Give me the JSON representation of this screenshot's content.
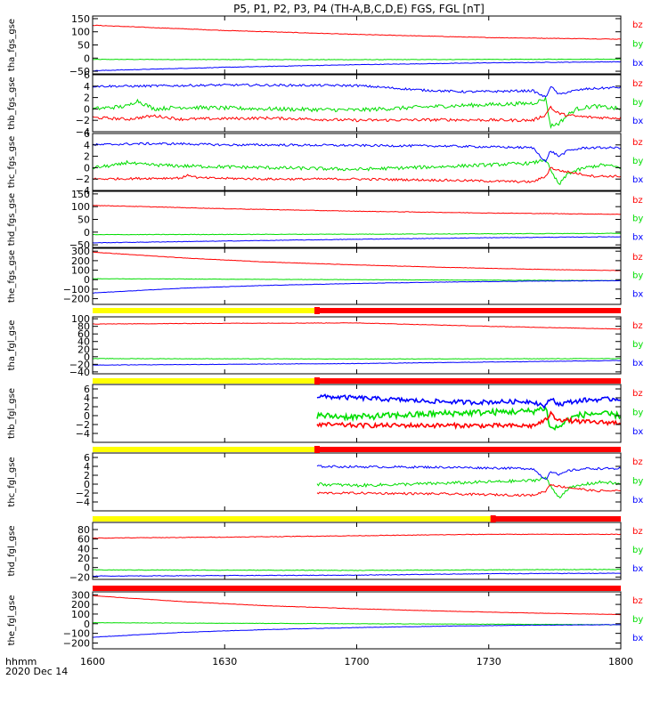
{
  "title": "P5, P1, P2, P3, P4 (TH-A,B,C,D,E) FGS, FGL [nT]",
  "time_axis": {
    "unit_label": "hhmm",
    "date_label": "2020 Dec 14",
    "range_minutes": [
      0,
      120
    ],
    "ticks": [
      {
        "t": 0,
        "label": "1600"
      },
      {
        "t": 30,
        "label": "1630"
      },
      {
        "t": 60,
        "label": "1700"
      },
      {
        "t": 90,
        "label": "1730"
      },
      {
        "t": 120,
        "label": "1800"
      }
    ]
  },
  "colors": {
    "bx": "#0000ff",
    "by": "#00dd00",
    "bz": "#ff0000",
    "mode_slow": "#ffff00",
    "mode_fast": "#ff0000"
  },
  "legend_labels": [
    "bz",
    "by",
    "bx"
  ],
  "chart_data": [
    {
      "type": "line",
      "name": "tha_fgs_gse",
      "ylabel": "tha_fgs_gse",
      "ylim": [
        -60,
        160
      ],
      "yticks": [
        {
          "v": 150,
          "label": "150"
        },
        {
          "v": 100,
          "label": "100"
        },
        {
          "v": 50,
          "label": "50"
        },
        {
          "v": 0,
          "label": "0"
        },
        {
          "v": -50,
          "label": "−50"
        }
      ],
      "series": [
        {
          "name": "bz",
          "x": [
            0,
            30,
            60,
            90,
            120
          ],
          "y": [
            125,
            105,
            90,
            78,
            72
          ],
          "noise": 1
        },
        {
          "name": "by",
          "x": [
            0,
            60,
            120
          ],
          "y": [
            -5,
            -6,
            -4
          ],
          "noise": 1
        },
        {
          "name": "bx",
          "x": [
            0,
            30,
            60,
            90,
            120
          ],
          "y": [
            -48,
            -35,
            -25,
            -18,
            -14
          ],
          "noise": 1
        }
      ]
    },
    {
      "type": "line",
      "name": "thb_fgs_gse",
      "ylabel": "thb_fgs_gse",
      "ylim": [
        -4,
        6
      ],
      "yticks": [
        {
          "v": 6,
          "label": "6"
        },
        {
          "v": 4,
          "label": "4"
        },
        {
          "v": 2,
          "label": "2"
        },
        {
          "v": 0,
          "label": "0"
        },
        {
          "v": -2,
          "label": "−2"
        },
        {
          "v": -4,
          "label": "−4"
        }
      ],
      "series": [
        {
          "name": "bz",
          "x": [
            0,
            8,
            14,
            20,
            40,
            60,
            80,
            100,
            103,
            104,
            105,
            107,
            110,
            114,
            120
          ],
          "y": [
            -1.5,
            -1.8,
            -1.2,
            -1.8,
            -1.6,
            -2.0,
            -1.9,
            -2.0,
            -1.0,
            0.5,
            -0.5,
            -1.0,
            -1.3,
            -1.5,
            -1.6
          ],
          "noise": 0.25
        },
        {
          "name": "by",
          "x": [
            0,
            8,
            10,
            14,
            20,
            40,
            60,
            80,
            100,
            103,
            104,
            106,
            108,
            110,
            114,
            120
          ],
          "y": [
            0.0,
            0.5,
            1.5,
            0.0,
            0.3,
            0.0,
            -0.2,
            0.5,
            1.0,
            1.8,
            -3.0,
            -2.5,
            -1.0,
            0.0,
            0.5,
            0.0
          ],
          "noise": 0.35
        },
        {
          "name": "bx",
          "x": [
            0,
            10,
            30,
            60,
            75,
            85,
            100,
            103,
            104,
            106,
            108,
            112,
            120
          ],
          "y": [
            4.0,
            4.0,
            4.2,
            4.1,
            3.3,
            3.0,
            3.2,
            2.0,
            4.0,
            2.5,
            3.0,
            3.5,
            3.8
          ],
          "noise": 0.2
        }
      ]
    },
    {
      "type": "line",
      "name": "thc_fgs_gse",
      "ylabel": "thc_fgs_gse",
      "ylim": [
        -4,
        6
      ],
      "yticks": [
        {
          "v": 6,
          "label": "6"
        },
        {
          "v": 4,
          "label": "4"
        },
        {
          "v": 2,
          "label": "2"
        },
        {
          "v": 0,
          "label": "0"
        },
        {
          "v": -2,
          "label": "−2"
        },
        {
          "v": -4,
          "label": "−4"
        }
      ],
      "series": [
        {
          "name": "bz",
          "x": [
            0,
            20,
            22,
            24,
            40,
            60,
            80,
            100,
            103,
            104,
            106,
            110,
            114,
            120
          ],
          "y": [
            -2.0,
            -1.8,
            -1.3,
            -1.8,
            -2.0,
            -2.0,
            -2.2,
            -2.5,
            -1.5,
            0.0,
            -0.5,
            -1.0,
            -1.5,
            -1.5
          ],
          "noise": 0.2
        },
        {
          "name": "by",
          "x": [
            0,
            6,
            8,
            10,
            20,
            40,
            60,
            80,
            100,
            103,
            104,
            106,
            108,
            112,
            116,
            120
          ],
          "y": [
            0.0,
            0.5,
            1.0,
            0.6,
            0.3,
            0.0,
            -0.3,
            0.2,
            0.8,
            1.5,
            -0.5,
            -3.0,
            -1.0,
            0.0,
            0.5,
            0.0
          ],
          "noise": 0.3
        },
        {
          "name": "bx",
          "x": [
            0,
            10,
            20,
            30,
            40,
            60,
            80,
            100,
            103,
            104,
            106,
            108,
            112,
            120
          ],
          "y": [
            4.0,
            4.2,
            4.2,
            4.0,
            4.0,
            3.9,
            3.8,
            3.5,
            1.0,
            3.0,
            2.0,
            3.0,
            3.5,
            3.5
          ],
          "noise": 0.2
        }
      ]
    },
    {
      "type": "line",
      "name": "thd_fgs_gse",
      "ylabel": "thd_fgs_gse",
      "ylim": [
        -60,
        160
      ],
      "yticks": [
        {
          "v": 150,
          "label": "150"
        },
        {
          "v": 100,
          "label": "100"
        },
        {
          "v": 50,
          "label": "50"
        },
        {
          "v": 0,
          "label": "0"
        },
        {
          "v": -50,
          "label": "−50"
        }
      ],
      "series": [
        {
          "name": "bz",
          "x": [
            0,
            30,
            60,
            90,
            120
          ],
          "y": [
            105,
            92,
            82,
            75,
            70
          ],
          "noise": 1
        },
        {
          "name": "by",
          "x": [
            0,
            60,
            120
          ],
          "y": [
            -10,
            -8,
            -5
          ],
          "noise": 1
        },
        {
          "name": "bx",
          "x": [
            0,
            30,
            60,
            90,
            120
          ],
          "y": [
            -42,
            -35,
            -28,
            -22,
            -18
          ],
          "noise": 1
        }
      ]
    },
    {
      "type": "line",
      "name": "the_fgs_gse",
      "ylabel": "the_fgs_gse",
      "ylim": [
        -260,
        330
      ],
      "yticks": [
        {
          "v": 300,
          "label": "300"
        },
        {
          "v": 200,
          "label": "200"
        },
        {
          "v": 100,
          "label": "100"
        },
        {
          "v": 0,
          "label": "0"
        },
        {
          "v": -100,
          "label": "−100"
        },
        {
          "v": -200,
          "label": "−200"
        }
      ],
      "series": [
        {
          "name": "bz",
          "x": [
            0,
            20,
            40,
            60,
            80,
            100,
            120
          ],
          "y": [
            290,
            230,
            185,
            155,
            130,
            110,
            95
          ],
          "noise": 2
        },
        {
          "name": "by",
          "x": [
            0,
            60,
            120
          ],
          "y": [
            10,
            0,
            -10
          ],
          "noise": 2
        },
        {
          "name": "bx",
          "x": [
            0,
            20,
            40,
            60,
            80,
            100,
            120
          ],
          "y": [
            -140,
            -90,
            -60,
            -40,
            -25,
            -15,
            -10
          ],
          "noise": 2
        }
      ]
    },
    {
      "type": "line",
      "name": "tha_fgl_gse",
      "ylabel": "tha_fgl_gse",
      "ylim": [
        -45,
        105
      ],
      "yticks": [
        {
          "v": 100,
          "label": "100"
        },
        {
          "v": 80,
          "label": "80"
        },
        {
          "v": 60,
          "label": "60"
        },
        {
          "v": 40,
          "label": "40"
        },
        {
          "v": 20,
          "label": "20"
        },
        {
          "v": 0,
          "label": "0"
        },
        {
          "v": -20,
          "label": "−20"
        },
        {
          "v": -40,
          "label": "−40"
        }
      ],
      "series": [
        {
          "name": "bz",
          "x": [
            0,
            30,
            60,
            90,
            120
          ],
          "y": [
            86,
            88,
            89,
            80,
            73
          ],
          "noise": 0.6
        },
        {
          "name": "by",
          "x": [
            0,
            60,
            120
          ],
          "y": [
            -5,
            -6,
            -5
          ],
          "noise": 0.6
        },
        {
          "name": "bx",
          "x": [
            0,
            30,
            60,
            90,
            120
          ],
          "y": [
            -22,
            -20,
            -18,
            -14,
            -10
          ],
          "noise": 0.6
        }
      ]
    },
    {
      "type": "line",
      "name": "thb_fgl_gse",
      "ylabel": "thb_fgl_gse",
      "ylim": [
        -6,
        7
      ],
      "yticks": [
        {
          "v": 6,
          "label": "6"
        },
        {
          "v": 4,
          "label": "4"
        },
        {
          "v": 2,
          "label": "2"
        },
        {
          "v": 0,
          "label": "0"
        },
        {
          "v": -2,
          "label": "−2"
        },
        {
          "v": -4,
          "label": "−4"
        }
      ],
      "series": [
        {
          "name": "bz",
          "x": [
            51,
            60,
            80,
            100,
            103,
            104,
            105,
            107,
            110,
            114,
            120
          ],
          "y": [
            -2.0,
            -2.2,
            -2.2,
            -2.3,
            -1.0,
            0.5,
            -0.5,
            -1.0,
            -1.3,
            -1.5,
            -1.6
          ],
          "noise": 0.5
        },
        {
          "name": "by",
          "x": [
            51,
            60,
            80,
            100,
            103,
            104,
            106,
            108,
            110,
            114,
            120
          ],
          "y": [
            0.0,
            -0.3,
            0.5,
            1.0,
            1.8,
            -3.0,
            -2.5,
            -1.0,
            0.0,
            0.5,
            0.0
          ],
          "noise": 0.7
        },
        {
          "name": "bx",
          "x": [
            51,
            60,
            75,
            85,
            100,
            103,
            104,
            106,
            108,
            112,
            120
          ],
          "y": [
            4.3,
            4.0,
            3.3,
            3.0,
            3.2,
            2.0,
            4.0,
            2.5,
            3.0,
            3.5,
            3.8
          ],
          "noise": 0.5
        }
      ]
    },
    {
      "type": "line",
      "name": "thc_fgl_gse",
      "ylabel": "thc_fgl_gse",
      "ylim": [
        -6,
        7
      ],
      "yticks": [
        {
          "v": 6,
          "label": "6"
        },
        {
          "v": 4,
          "label": "4"
        },
        {
          "v": 2,
          "label": "2"
        },
        {
          "v": 0,
          "label": "0"
        },
        {
          "v": -2,
          "label": "−2"
        },
        {
          "v": -4,
          "label": "−4"
        }
      ],
      "series": [
        {
          "name": "bz",
          "x": [
            51,
            60,
            80,
            100,
            103,
            104,
            106,
            110,
            114,
            120
          ],
          "y": [
            -2.0,
            -2.0,
            -2.2,
            -2.5,
            -1.5,
            0.0,
            -0.5,
            -1.0,
            -1.5,
            -1.5
          ],
          "noise": 0.25
        },
        {
          "name": "by",
          "x": [
            51,
            60,
            80,
            100,
            103,
            104,
            106,
            108,
            112,
            116,
            120
          ],
          "y": [
            0.0,
            -0.3,
            0.2,
            0.8,
            1.5,
            -0.5,
            -3.0,
            -1.0,
            0.0,
            0.5,
            0.0
          ],
          "noise": 0.35
        },
        {
          "name": "bx",
          "x": [
            51,
            60,
            80,
            100,
            103,
            104,
            106,
            108,
            112,
            120
          ],
          "y": [
            4.0,
            3.9,
            3.8,
            3.5,
            1.0,
            3.0,
            2.0,
            3.0,
            3.5,
            3.5
          ],
          "noise": 0.25
        }
      ]
    },
    {
      "type": "line",
      "name": "thd_fgl_gse",
      "ylabel": "thd_fgl_gse",
      "ylim": [
        -25,
        95
      ],
      "yticks": [
        {
          "v": 80,
          "label": "80"
        },
        {
          "v": 60,
          "label": "60"
        },
        {
          "v": 40,
          "label": "40"
        },
        {
          "v": 20,
          "label": "20"
        },
        {
          "v": 0,
          "label": "0"
        },
        {
          "v": -20,
          "label": "−20"
        }
      ],
      "series": [
        {
          "name": "bz",
          "x": [
            0,
            30,
            60,
            90,
            120
          ],
          "y": [
            62,
            64,
            67,
            70,
            70
          ],
          "noise": 0.6
        },
        {
          "name": "by",
          "x": [
            0,
            60,
            120
          ],
          "y": [
            -5,
            -6,
            -4
          ],
          "noise": 0.6
        },
        {
          "name": "bx",
          "x": [
            0,
            30,
            60,
            90,
            120
          ],
          "y": [
            -18,
            -17,
            -16,
            -13,
            -12
          ],
          "noise": 0.6
        }
      ]
    },
    {
      "type": "line",
      "name": "the_fgl_gse",
      "ylabel": "the_fgl_gse",
      "ylim": [
        -260,
        330
      ],
      "yticks": [
        {
          "v": 300,
          "label": "300"
        },
        {
          "v": 200,
          "label": "200"
        },
        {
          "v": 100,
          "label": "100"
        },
        {
          "v": 0,
          "label": "0"
        },
        {
          "v": -100,
          "label": "−100"
        },
        {
          "v": -200,
          "label": "−200"
        }
      ],
      "series": [
        {
          "name": "bz",
          "x": [
            0,
            20,
            40,
            60,
            80,
            100,
            120
          ],
          "y": [
            290,
            230,
            185,
            155,
            130,
            110,
            95
          ],
          "noise": 2
        },
        {
          "name": "by",
          "x": [
            0,
            60,
            120
          ],
          "y": [
            10,
            0,
            -10
          ],
          "noise": 2
        },
        {
          "name": "bx",
          "x": [
            0,
            20,
            40,
            60,
            80,
            100,
            120
          ],
          "y": [
            -140,
            -90,
            -60,
            -40,
            -25,
            -15,
            -10
          ],
          "noise": 2
        }
      ]
    }
  ],
  "mode_bars": [
    {
      "after": "the_fgs_gse",
      "slow_until": 51
    },
    {
      "after": "tha_fgl_gse",
      "slow_until": 51
    },
    {
      "after": "thb_fgl_gse",
      "slow_until": 51
    },
    {
      "after": "thc_fgl_gse",
      "slow_until": 91
    },
    {
      "after": "thd_fgl_gse",
      "slow_until": 0
    }
  ]
}
